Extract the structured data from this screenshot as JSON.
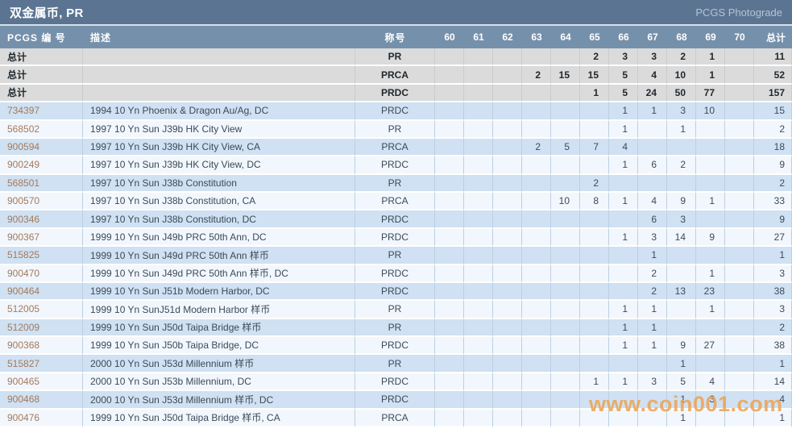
{
  "header": {
    "title": "双金属币, PR",
    "right_link": "PCGS Photograde"
  },
  "table": {
    "columns": {
      "pcgs": "PCGS 编 号",
      "desc": "描述",
      "desig": "称号",
      "grades": [
        "60",
        "61",
        "62",
        "63",
        "64",
        "65",
        "66",
        "67",
        "68",
        "69",
        "70"
      ],
      "total": "总计"
    },
    "summary_label": "总计",
    "summary_rows": [
      {
        "desig": "PR",
        "grades": {
          "65": 2,
          "66": 3,
          "67": 3,
          "68": 2,
          "69": 1
        },
        "total": 11
      },
      {
        "desig": "PRCA",
        "grades": {
          "63": 2,
          "64": 15,
          "65": 15,
          "66": 5,
          "67": 4,
          "68": 10,
          "69": 1
        },
        "total": 52
      },
      {
        "desig": "PRDC",
        "grades": {
          "65": 1,
          "66": 5,
          "67": 24,
          "68": 50,
          "69": 77
        },
        "total": 157
      }
    ],
    "rows": [
      {
        "pcgs": "734397",
        "desc": "1994 10 Yn Phoenix & Dragon Au/Ag, DC",
        "desig": "PRDC",
        "grades": {
          "66": 1,
          "67": 1,
          "68": 3,
          "69": 10
        },
        "total": 15
      },
      {
        "pcgs": "568502",
        "desc": "1997 10 Yn Sun J39b HK City View",
        "desig": "PR",
        "grades": {
          "66": 1,
          "68": 1
        },
        "total": 2
      },
      {
        "pcgs": "900594",
        "desc": "1997 10 Yn Sun J39b HK City View, CA",
        "desig": "PRCA",
        "grades": {
          "63": 2,
          "64": 5,
          "65": 7,
          "66": 4
        },
        "total": 18
      },
      {
        "pcgs": "900249",
        "desc": "1997 10 Yn Sun J39b HK City View, DC",
        "desig": "PRDC",
        "grades": {
          "66": 1,
          "67": 6,
          "68": 2
        },
        "total": 9
      },
      {
        "pcgs": "568501",
        "desc": "1997 10 Yn Sun J38b Constitution",
        "desig": "PR",
        "grades": {
          "65": 2
        },
        "total": 2
      },
      {
        "pcgs": "900570",
        "desc": "1997 10 Yn Sun J38b Constitution, CA",
        "desig": "PRCA",
        "grades": {
          "64": 10,
          "65": 8,
          "66": 1,
          "67": 4,
          "68": 9,
          "69": 1
        },
        "total": 33
      },
      {
        "pcgs": "900346",
        "desc": "1997 10 Yn Sun J38b Constitution, DC",
        "desig": "PRDC",
        "grades": {
          "67": 6,
          "68": 3
        },
        "total": 9
      },
      {
        "pcgs": "900367",
        "desc": "1999 10 Yn Sun J49b PRC 50th Ann, DC",
        "desig": "PRDC",
        "grades": {
          "66": 1,
          "67": 3,
          "68": 14,
          "69": 9
        },
        "total": 27
      },
      {
        "pcgs": "515825",
        "desc": "1999 10 Yn Sun J49d PRC 50th Ann 样币",
        "desig": "PR",
        "grades": {
          "67": 1
        },
        "total": 1
      },
      {
        "pcgs": "900470",
        "desc": "1999 10 Yn Sun J49d PRC 50th Ann 样币, DC",
        "desig": "PRDC",
        "grades": {
          "67": 2,
          "69": 1
        },
        "total": 3
      },
      {
        "pcgs": "900464",
        "desc": "1999 10 Yn Sun J51b Modern Harbor, DC",
        "desig": "PRDC",
        "grades": {
          "67": 2,
          "68": 13,
          "69": 23
        },
        "total": 38
      },
      {
        "pcgs": "512005",
        "desc": "1999 10 Yn SunJ51d Modern Harbor 样币",
        "desig": "PR",
        "grades": {
          "66": 1,
          "67": 1,
          "69": 1
        },
        "total": 3
      },
      {
        "pcgs": "512009",
        "desc": "1999 10 Yn Sun J50d Taipa Bridge 样币",
        "desig": "PR",
        "grades": {
          "66": 1,
          "67": 1
        },
        "total": 2
      },
      {
        "pcgs": "900368",
        "desc": "1999 10 Yn Sun J50b Taipa Bridge, DC",
        "desig": "PRDC",
        "grades": {
          "66": 1,
          "67": 1,
          "68": 9,
          "69": 27
        },
        "total": 38
      },
      {
        "pcgs": "515827",
        "desc": "2000 10 Yn Sun J53d Millennium 样币",
        "desig": "PR",
        "grades": {
          "68": 1
        },
        "total": 1
      },
      {
        "pcgs": "900465",
        "desc": "2000 10 Yn Sun J53b Millennium, DC",
        "desig": "PRDC",
        "grades": {
          "65": 1,
          "66": 1,
          "67": 3,
          "68": 5,
          "69": 4
        },
        "total": 14
      },
      {
        "pcgs": "900468",
        "desc": "2000 10 Yn Sun J53d Millennium 样币, DC",
        "desig": "PRDC",
        "grades": {
          "68": 1,
          "69": 3
        },
        "total": 4
      },
      {
        "pcgs": "900476",
        "desc": "1999 10 Yn Sun J50d Taipa Bridge 样币, CA",
        "desig": "PRCA",
        "grades": {
          "68": 1
        },
        "total": 1
      }
    ]
  },
  "watermark": {
    "text": "www.coin001.com"
  },
  "colors": {
    "topbar": "#5b7492",
    "column_header": "#7590ab",
    "row_blue": "#cfe1f2",
    "row_light": "#f2f7fd",
    "summary_gray": "#dbdbdb",
    "link": "#a5795c",
    "watermark": "rgba(235,162,82,0.85)"
  }
}
